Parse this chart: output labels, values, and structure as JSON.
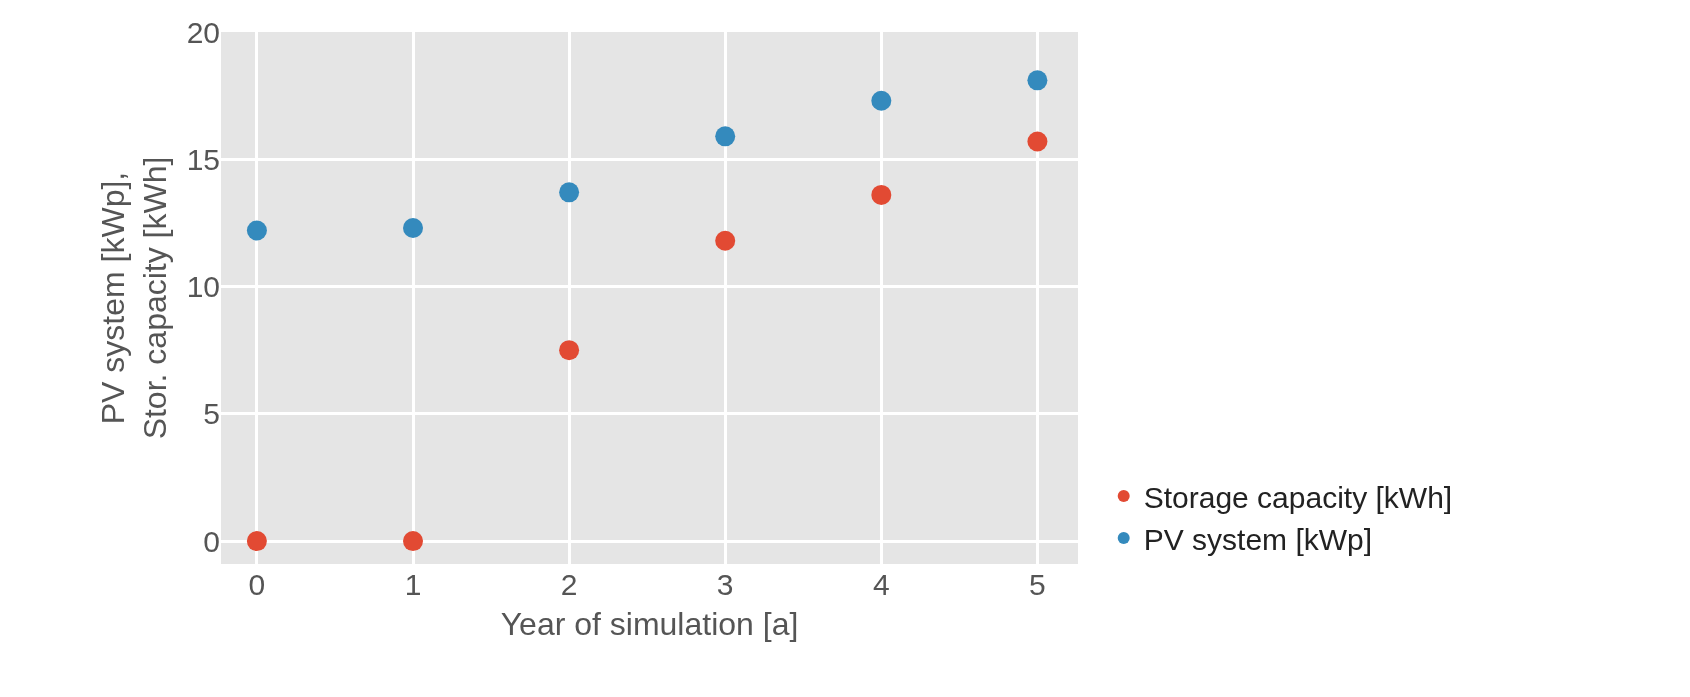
{
  "chart_data": {
    "type": "scatter",
    "xlabel": "Year of simulation [a]",
    "ylabel": "PV system [kWp],\nStor. capacity [kWh]",
    "x": [
      0,
      1,
      2,
      3,
      4,
      5
    ],
    "series": [
      {
        "name": "Storage capacity [kWh]",
        "color": "#e24a33",
        "values": [
          0,
          0,
          7.5,
          11.8,
          13.6,
          15.7
        ]
      },
      {
        "name": "PV system [kWp]",
        "color": "#348abd",
        "values": [
          12.2,
          12.3,
          13.7,
          15.9,
          17.3,
          18.1
        ]
      }
    ],
    "xlim": [
      -0.23,
      5.26
    ],
    "xticks": [
      0,
      1,
      2,
      3,
      4,
      5
    ],
    "ylim": [
      -0.9,
      20
    ],
    "yticks": [
      0,
      5,
      10,
      15,
      20
    ],
    "grid": true,
    "legend": "bottom right",
    "marker": "circle"
  }
}
